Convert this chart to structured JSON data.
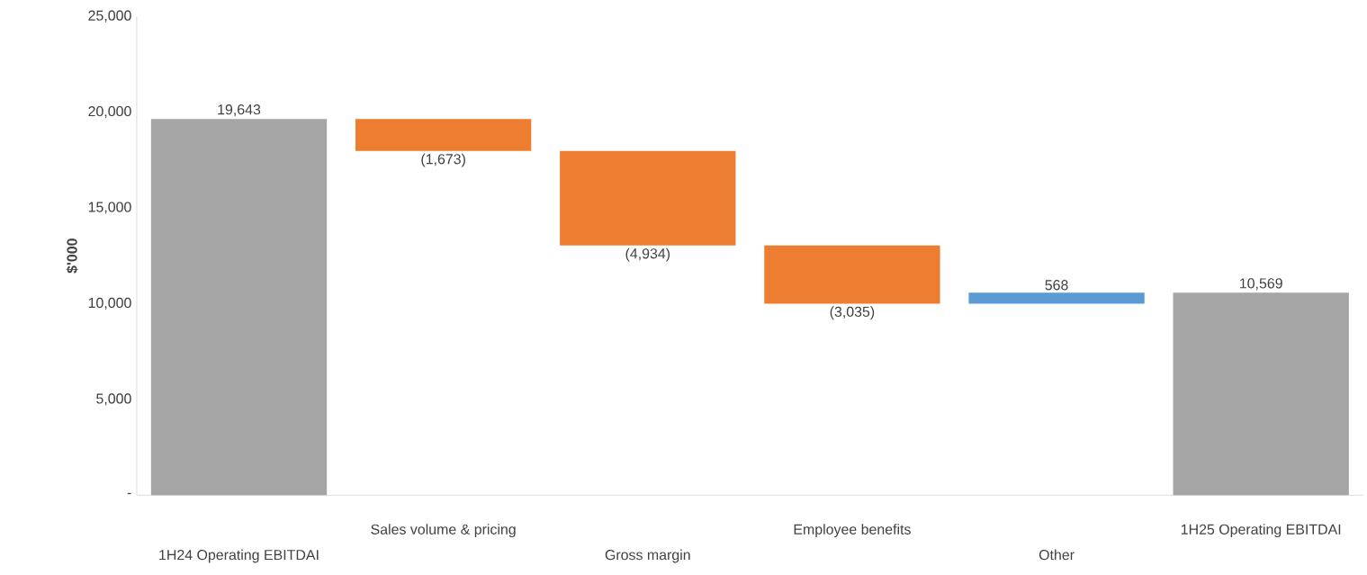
{
  "chart_data": {
    "type": "bar",
    "ylabel": "$'000",
    "categories": [
      "1H24 Operating EBITDAI",
      "Sales volume & pricing",
      "Gross margin",
      "Employee benefits",
      "Other",
      "1H25 Operating EBITDAI"
    ],
    "values": [
      19643,
      -1673,
      -4934,
      -3035,
      568,
      10569
    ],
    "base": [
      0,
      19643,
      17970,
      13036,
      10001,
      0
    ],
    "colors": [
      "#a5a5a5",
      "#ed7d31",
      "#ed7d31",
      "#ed7d31",
      "#5b9bd5",
      "#a5a5a5"
    ],
    "value_labels": [
      "19,643",
      "(1,673)",
      "(4,934)",
      "(3,035)",
      "568",
      "10,569"
    ],
    "ylim": [
      0,
      25000
    ],
    "yticks": [
      {
        "value": 0,
        "label": "-"
      },
      {
        "value": 5000,
        "label": "5,000"
      },
      {
        "value": 10000,
        "label": "10,000"
      },
      {
        "value": 15000,
        "label": "15,000"
      },
      {
        "value": 20000,
        "label": "20,000"
      },
      {
        "value": 25000,
        "label": "25,000"
      }
    ]
  }
}
